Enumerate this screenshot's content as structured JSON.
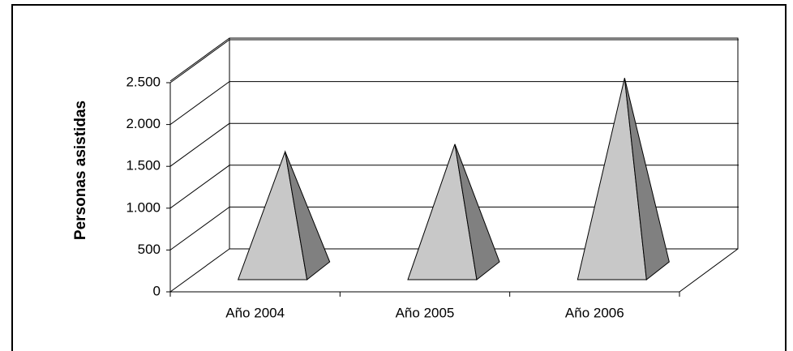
{
  "chart_data": {
    "type": "pyramid",
    "y_label": "Personas asistidas",
    "categories": [
      "Año 2004",
      "Año 2005",
      "Año 2006"
    ],
    "values": [
      1530,
      1620,
      2410
    ],
    "colors": {
      "front": "#c8c8c8",
      "side": "#808080"
    },
    "ylim": [
      0,
      2500
    ],
    "yticks": [
      0,
      500,
      {
        "value": 1000,
        "label": "1.000"
      },
      {
        "value": 1500,
        "label": "1.500"
      },
      {
        "value": 2000,
        "label": "2.000"
      },
      {
        "value": 2500,
        "label": "2.500"
      }
    ],
    "grid": true
  }
}
